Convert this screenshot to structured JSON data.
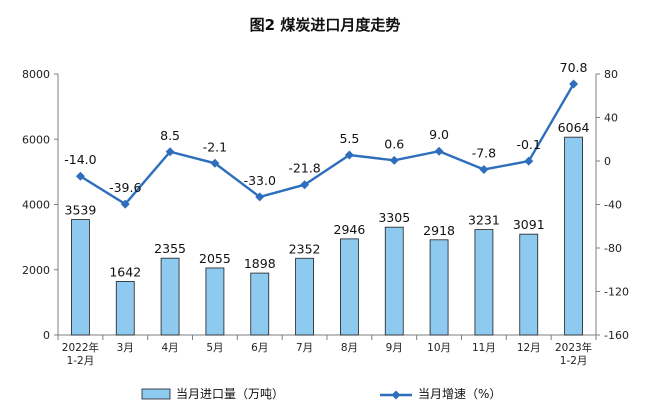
{
  "title": "图2  煤炭进口月度走势",
  "chart_data": {
    "type": "bar",
    "categories": [
      [
        "2022年",
        "1-2月"
      ],
      [
        "3月"
      ],
      [
        "4月"
      ],
      [
        "5月"
      ],
      [
        "6月"
      ],
      [
        "7月"
      ],
      [
        "8月"
      ],
      [
        "9月"
      ],
      [
        "10月"
      ],
      [
        "11月"
      ],
      [
        "12月"
      ],
      [
        "2023年",
        "1-2月"
      ]
    ],
    "series": [
      {
        "name": "当月进口量（万吨）",
        "type": "bar",
        "axis": "left",
        "color": "#8ec9f0",
        "values": [
          3539,
          1642,
          2355,
          2055,
          1898,
          2352,
          2946,
          3305,
          2918,
          3231,
          3091,
          6064
        ]
      },
      {
        "name": "当月增速（%）",
        "type": "line",
        "axis": "right",
        "color": "#2e6fbd",
        "values": [
          -14.0,
          -39.6,
          8.5,
          -2.1,
          -33.0,
          -21.8,
          5.5,
          0.6,
          9.0,
          -7.8,
          -0.1,
          70.8
        ]
      }
    ],
    "bar_value_labels": [
      "3539",
      "1642",
      "2355",
      "2055",
      "1898",
      "2352",
      "2946",
      "3305",
      "2918",
      "3231",
      "3091",
      "6064"
    ],
    "line_value_labels": [
      "-14.0",
      "-39.6",
      "8.5",
      "-2.1",
      "-33.0",
      "-21.8",
      "5.5",
      "0.6",
      "9.0",
      "-7.8",
      "-0.1",
      "70.8"
    ],
    "y_left": {
      "min": 0,
      "max": 8000,
      "ticks": [
        "0",
        "2000",
        "4000",
        "6000",
        "8000"
      ]
    },
    "y_right": {
      "min": -160,
      "max": 80,
      "ticks": [
        "-160",
        "-120",
        "-80",
        "-40",
        "0",
        "40",
        "80"
      ]
    },
    "grid": false,
    "legend_position": "bottom"
  }
}
